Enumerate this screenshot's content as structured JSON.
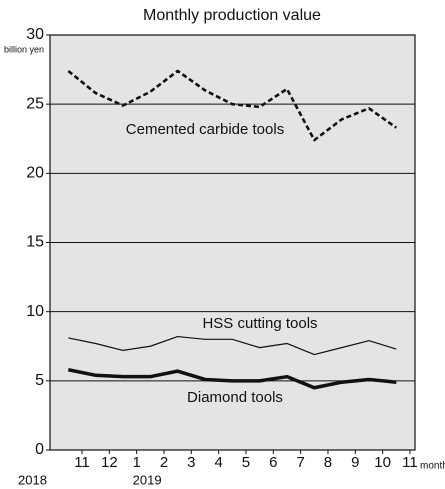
{
  "chart_data": {
    "type": "line",
    "title": "Monthly production value",
    "y_unit": "billion yen",
    "x_unit": "month",
    "categories": [
      "11",
      "12",
      "1",
      "2",
      "3",
      "4",
      "5",
      "6",
      "7",
      "8",
      "9",
      "10",
      "11"
    ],
    "years": [
      "2018",
      "2019"
    ],
    "series": [
      {
        "name": "Cemented carbide tools",
        "color": "#111111",
        "style": "dashed",
        "values": [
          27.4,
          25.8,
          24.9,
          25.9,
          27.4,
          26.0,
          25.0,
          24.8,
          26.1,
          22.4,
          23.9,
          24.7,
          23.3
        ]
      },
      {
        "name": "HSS cutting tools",
        "color": "#111111",
        "style": "thin",
        "values": [
          8.1,
          7.7,
          7.2,
          7.5,
          8.2,
          8.0,
          8.0,
          7.4,
          7.7,
          6.9,
          7.4,
          7.9,
          7.3
        ]
      },
      {
        "name": "Diamond tools",
        "color": "#111111",
        "style": "thick",
        "values": [
          5.8,
          5.4,
          5.3,
          5.3,
          5.7,
          5.1,
          5.0,
          5.0,
          5.3,
          4.5,
          4.9,
          5.1,
          4.9
        ]
      }
    ],
    "ylim": [
      0,
      30
    ],
    "yticks": [
      0,
      5,
      10,
      15,
      20,
      25,
      30
    ],
    "grid": true
  }
}
